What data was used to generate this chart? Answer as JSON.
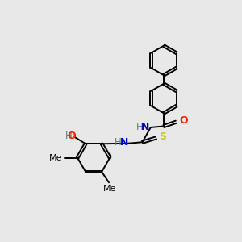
{
  "bg_color": "#e8e8e8",
  "bond_color": "#000000",
  "atom_colors": {
    "N": "#0000cd",
    "O": "#ff2000",
    "S": "#cccc00",
    "H": "#5c8080",
    "C": "#000000"
  },
  "lw": 1.4,
  "ring_r": 0.62
}
